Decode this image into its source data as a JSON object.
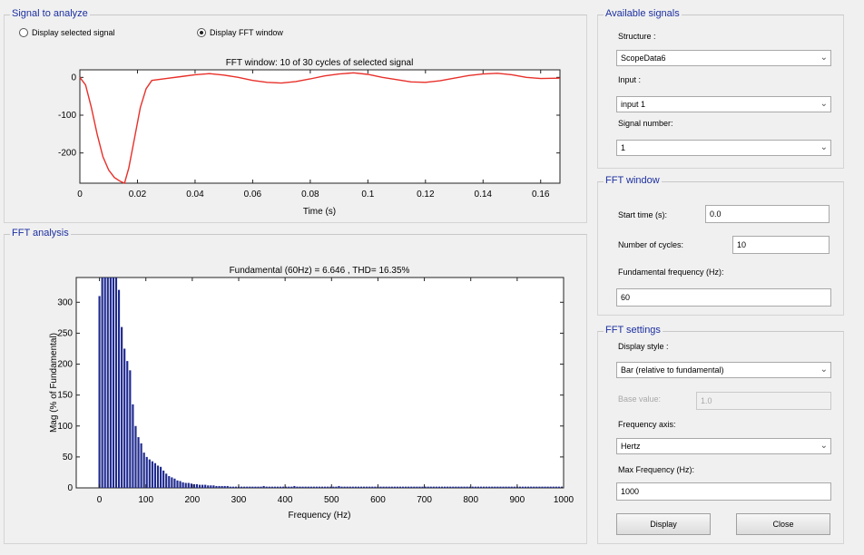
{
  "signal_panel": {
    "title": "Signal to analyze",
    "radio_selected_signal": "Display selected signal",
    "radio_fft_window": "Display FFT window"
  },
  "fft_analysis_panel": {
    "title": "FFT analysis"
  },
  "available_signals": {
    "title": "Available signals",
    "structure_label": "Structure :",
    "structure_value": "ScopeData6",
    "input_label": "Input :",
    "input_value": "input 1",
    "signal_number_label": "Signal number:",
    "signal_number_value": "1"
  },
  "fft_window": {
    "title": "FFT window",
    "start_time_label": "Start time (s):",
    "start_time_value": "0.0",
    "cycles_label": "Number of cycles:",
    "cycles_value": "10",
    "fund_freq_label": "Fundamental frequency (Hz):",
    "fund_freq_value": "60"
  },
  "fft_settings": {
    "title": "FFT settings",
    "display_style_label": "Display style :",
    "display_style_value": "Bar (relative to fundamental)",
    "base_value_label": "Base value:",
    "base_value_value": "1.0",
    "freq_axis_label": "Frequency axis:",
    "freq_axis_value": "Hertz",
    "max_freq_label": "Max Frequency (Hz):",
    "max_freq_value": "1000",
    "display_button": "Display",
    "close_button": "Close"
  },
  "colors": {
    "signal_line": "#e8302a",
    "fft_bar": "#1f2a8f",
    "panel_title": "#1c2fa0"
  },
  "chart_data": [
    {
      "type": "line",
      "title": "FFT window: 10 of 30 cycles of selected signal",
      "xlabel": "Time (s)",
      "ylabel": "",
      "xlim": [
        0,
        0.1667
      ],
      "ylim": [
        -280,
        20
      ],
      "xticks": [
        "0",
        "0.02",
        "0.04",
        "0.06",
        "0.08",
        "0.1",
        "0.12",
        "0.14",
        "0.16"
      ],
      "yticks": [
        "0",
        "-100",
        "-200"
      ],
      "grid": false,
      "series": [
        {
          "x": [
            0,
            0.002,
            0.004,
            0.006,
            0.008,
            0.01,
            0.012,
            0.014,
            0.0155,
            0.017,
            0.019,
            0.021,
            0.023,
            0.025,
            0.03,
            0.035,
            0.04,
            0.045,
            0.05,
            0.055,
            0.06,
            0.065,
            0.07,
            0.075,
            0.08,
            0.085,
            0.09,
            0.095,
            0.1,
            0.105,
            0.11,
            0.115,
            0.12,
            0.125,
            0.13,
            0.135,
            0.14,
            0.145,
            0.15,
            0.155,
            0.16,
            0.1667
          ],
          "y": [
            0,
            -20,
            -80,
            -150,
            -210,
            -245,
            -265,
            -275,
            -280,
            -240,
            -160,
            -80,
            -30,
            -8,
            -3,
            2,
            7,
            10,
            6,
            0,
            -8,
            -13,
            -15,
            -11,
            -4,
            4,
            9,
            12,
            8,
            0,
            -6,
            -12,
            -13,
            -9,
            -2,
            5,
            9,
            11,
            7,
            0,
            -3,
            -2
          ]
        }
      ]
    },
    {
      "type": "bar",
      "title": "Fundamental (60Hz) = 6.646 , THD= 16.35%",
      "xlabel": "Frequency (Hz)",
      "ylabel": "Mag (% of Fundamental)",
      "xlim": [
        -50,
        1000
      ],
      "ylim": [
        0,
        340
      ],
      "xticks": [
        "0",
        "100",
        "200",
        "300",
        "400",
        "500",
        "600",
        "700",
        "800",
        "900",
        "1000"
      ],
      "yticks": [
        "0",
        "50",
        "100",
        "150",
        "200",
        "250",
        "300"
      ],
      "grid": false,
      "bar_spacing_hz": 6,
      "values": [
        310,
        340,
        340,
        340,
        340,
        340,
        340,
        320,
        260,
        225,
        205,
        190,
        135,
        100,
        82,
        72,
        57,
        50,
        46,
        43,
        40,
        36,
        34,
        28,
        23,
        19,
        17,
        15,
        12,
        11,
        9,
        8,
        8,
        7,
        6,
        6,
        5,
        5,
        5,
        4,
        4,
        4,
        3,
        3,
        3,
        3,
        3,
        2,
        2,
        2,
        2,
        2,
        2,
        2,
        2,
        2,
        2,
        2,
        2,
        3,
        2,
        2,
        2,
        2,
        2,
        2,
        2,
        2,
        2,
        2,
        3,
        2,
        2,
        2,
        2,
        2,
        2,
        2,
        2,
        2,
        2,
        2,
        2,
        2,
        2,
        2,
        3,
        2,
        2,
        2,
        2,
        2,
        2,
        2,
        2,
        2,
        2,
        2,
        2,
        2,
        2,
        2,
        2,
        2,
        2,
        2,
        2,
        2,
        2,
        2,
        2,
        2,
        2,
        2,
        2,
        2,
        2,
        2,
        2,
        2,
        2,
        2,
        2,
        2,
        2,
        2,
        2,
        2,
        2,
        2,
        2,
        2,
        2,
        2,
        2,
        2,
        2,
        2,
        2,
        2,
        2,
        2,
        2,
        2,
        2,
        2,
        2,
        2,
        2,
        2,
        2,
        2,
        2,
        2,
        2,
        2,
        2,
        2,
        2,
        2,
        2,
        2,
        2,
        2,
        2,
        2,
        2
      ]
    }
  ]
}
